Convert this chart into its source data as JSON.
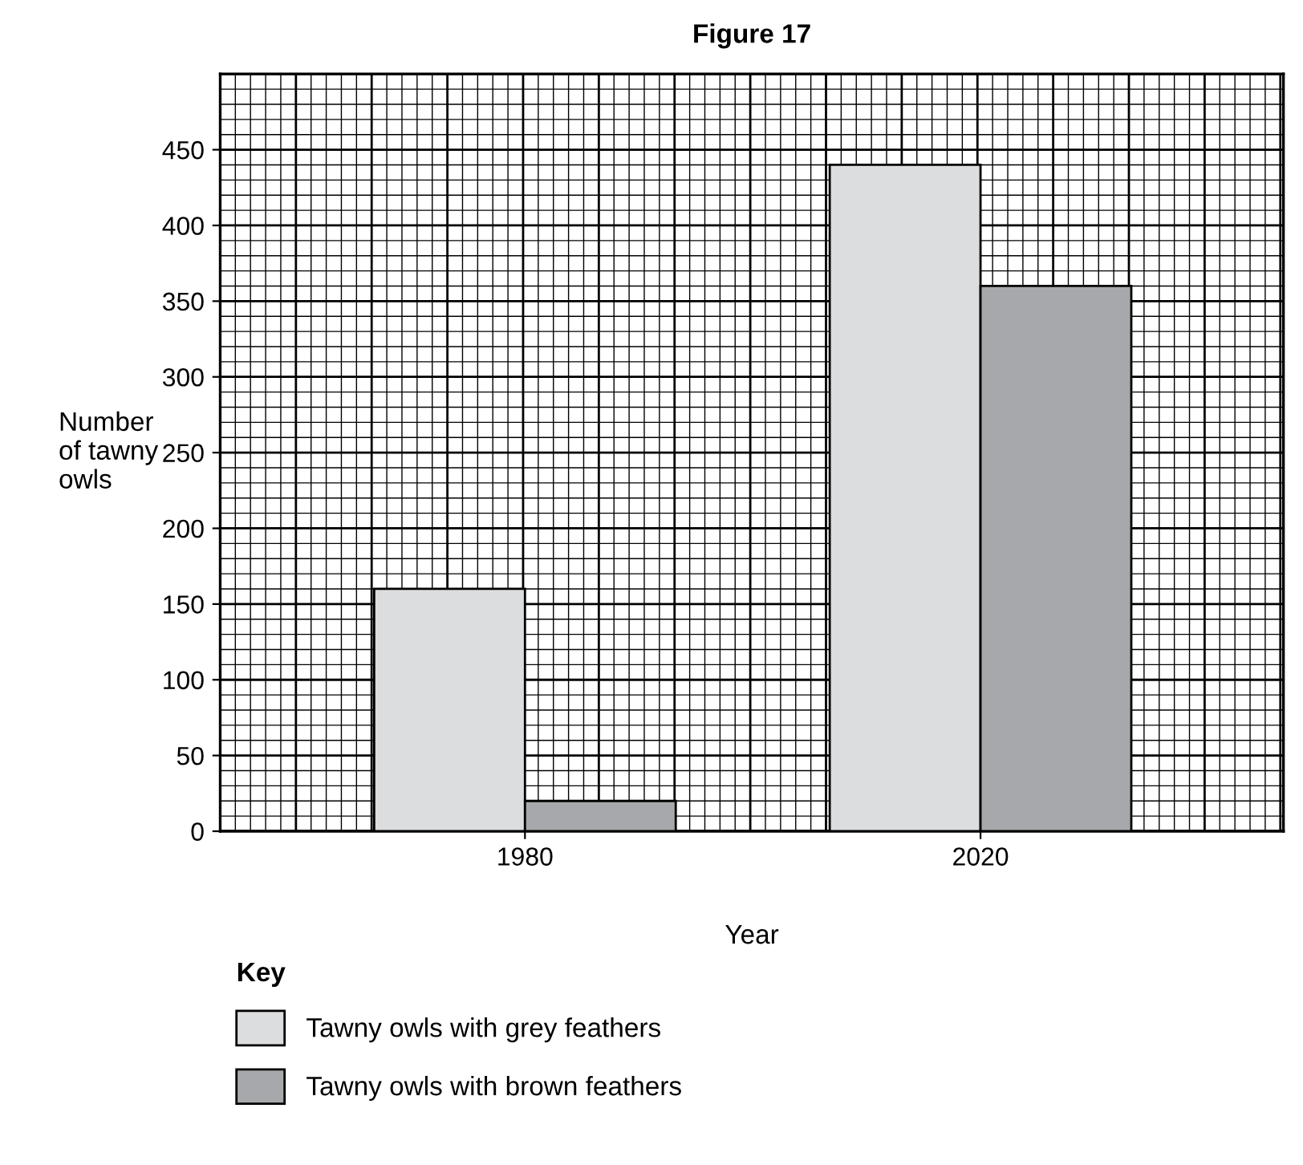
{
  "chart_data": {
    "type": "bar",
    "title": "Figure 17",
    "xlabel": "Year",
    "ylabel": "Number\nof tawny\nowls",
    "legend_title": "Key",
    "categories": [
      "1980",
      "2020"
    ],
    "series": [
      {
        "name": "Tawny owls with grey feathers",
        "color": "#dcdddf",
        "values": [
          160,
          440
        ]
      },
      {
        "name": "Tawny owls with brown feathers",
        "color": "#a7a8ab",
        "values": [
          20,
          360
        ]
      }
    ],
    "ylim": [
      0,
      500
    ],
    "yticks": [
      0,
      50,
      100,
      150,
      200,
      250,
      300,
      350,
      400,
      450
    ],
    "grid": true,
    "legend": "bottom"
  }
}
